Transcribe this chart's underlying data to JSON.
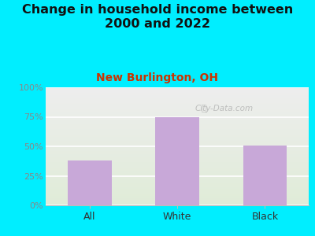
{
  "title": "Change in household income between\n2000 and 2022",
  "subtitle": "New Burlington, OH",
  "categories": [
    "All",
    "White",
    "Black"
  ],
  "values": [
    38,
    75,
    51
  ],
  "bar_color": "#c8a8d8",
  "title_fontsize": 11.5,
  "subtitle_fontsize": 10,
  "subtitle_color": "#cc3300",
  "tick_label_color": "#888888",
  "background_outer": "#00eeff",
  "background_inner_top": "#eeeeee",
  "background_inner_bottom": "#e0ecd8",
  "ylim": [
    0,
    100
  ],
  "yticks": [
    0,
    25,
    50,
    75,
    100
  ],
  "ytick_labels": [
    "0%",
    "25%",
    "50%",
    "75%",
    "100%"
  ],
  "watermark": "City-Data.com",
  "bar_width": 0.5
}
